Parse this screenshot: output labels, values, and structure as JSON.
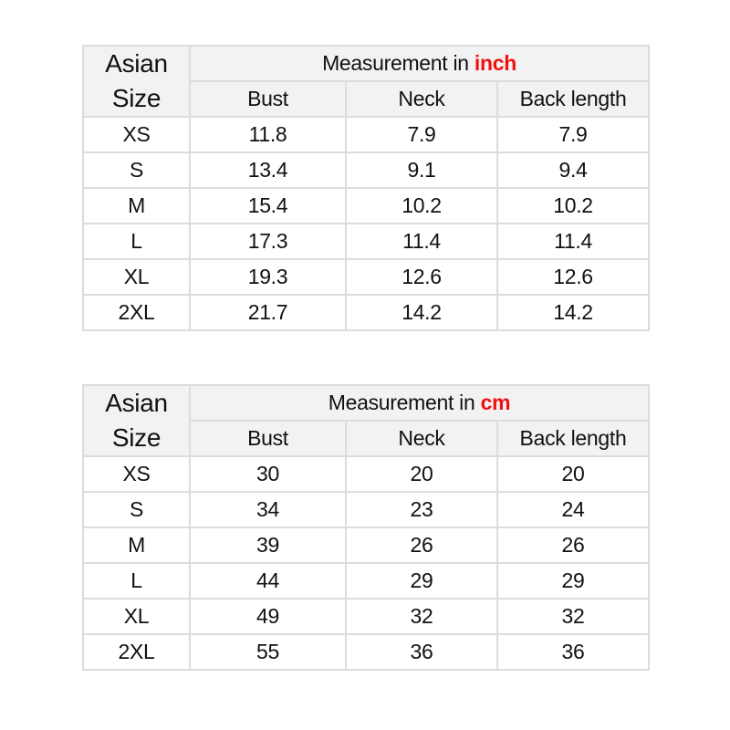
{
  "header": {
    "size_label_line1": "Asian",
    "size_label_line2": "Size",
    "measurement_prefix": "Measurement in",
    "columns": [
      "Bust",
      "Neck",
      "Back length"
    ]
  },
  "accent_color": "#f01010",
  "tables": [
    {
      "unit": "inch",
      "rows": [
        [
          "XS",
          "11.8",
          "7.9",
          "7.9"
        ],
        [
          "S",
          "13.4",
          "9.1",
          "9.4"
        ],
        [
          "M",
          "15.4",
          "10.2",
          "10.2"
        ],
        [
          "L",
          "17.3",
          "11.4",
          "11.4"
        ],
        [
          "XL",
          "19.3",
          "12.6",
          "12.6"
        ],
        [
          "2XL",
          "21.7",
          "14.2",
          "14.2"
        ]
      ]
    },
    {
      "unit": "cm",
      "rows": [
        [
          "XS",
          "30",
          "20",
          "20"
        ],
        [
          "S",
          "34",
          "23",
          "24"
        ],
        [
          "M",
          "39",
          "26",
          "26"
        ],
        [
          "L",
          "44",
          "29",
          "29"
        ],
        [
          "XL",
          "49",
          "32",
          "32"
        ],
        [
          "2XL",
          "55",
          "36",
          "36"
        ]
      ]
    }
  ]
}
